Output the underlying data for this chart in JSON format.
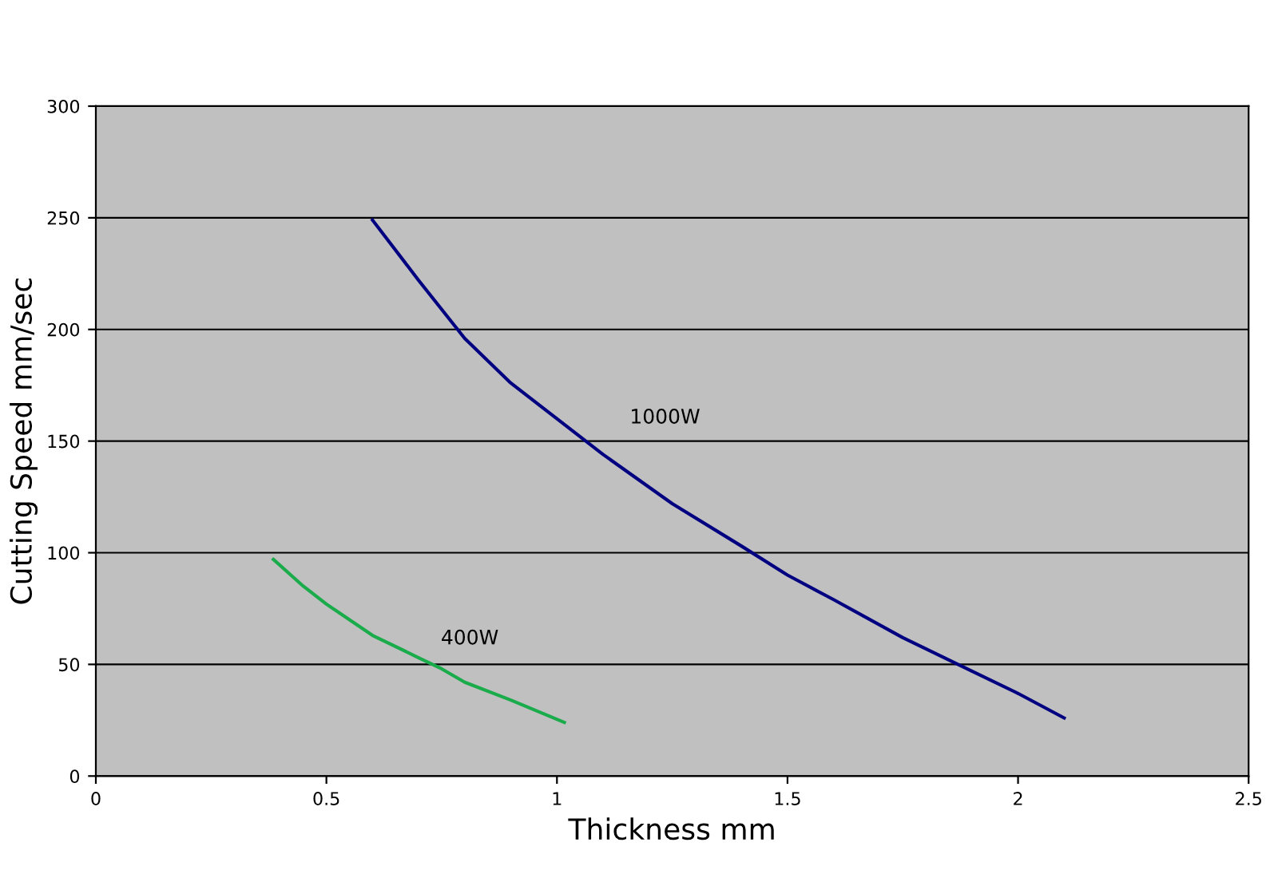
{
  "chart_data": {
    "type": "line",
    "xlabel": "Thickness mm",
    "ylabel": "Cutting Speed mm/sec",
    "xlim": [
      0,
      2.5
    ],
    "ylim": [
      0,
      300
    ],
    "xticks": [
      0,
      0.5,
      1,
      1.5,
      2,
      2.5
    ],
    "yticks": [
      0,
      50,
      100,
      150,
      200,
      250,
      300
    ],
    "grid": "y",
    "legend": false,
    "marker": "none",
    "line_style": "solid",
    "series": [
      {
        "name": "1000W",
        "color": "#000080",
        "x": [
          0.6,
          0.7,
          0.8,
          0.9,
          1.0,
          1.1,
          1.25,
          1.4,
          1.5,
          1.6,
          1.75,
          1.9,
          2.0,
          2.1
        ],
        "values": [
          249,
          222,
          196,
          176,
          160,
          144,
          122,
          103,
          90,
          79,
          62,
          47,
          37,
          26
        ]
      },
      {
        "name": "400W",
        "color": "#1aab4b",
        "x": [
          0.385,
          0.45,
          0.5,
          0.6,
          0.7,
          0.75,
          0.8,
          0.9,
          1.016
        ],
        "values": [
          97,
          85,
          77,
          63,
          53,
          48,
          42,
          34,
          24
        ]
      }
    ]
  }
}
